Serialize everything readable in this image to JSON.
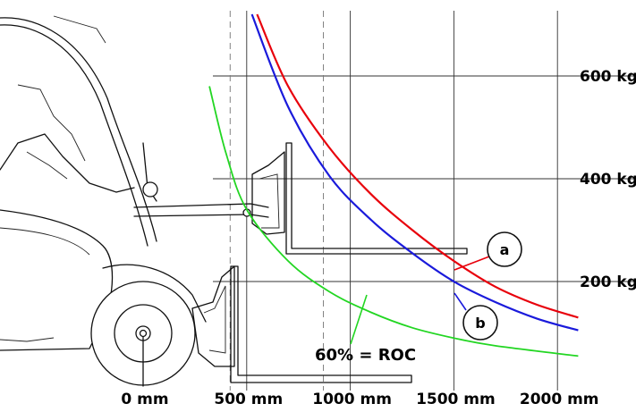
{
  "chart_data": {
    "type": "line",
    "title": "",
    "xlabel": "",
    "ylabel": "",
    "x_ticks": [
      {
        "value": 0,
        "label": "0 mm"
      },
      {
        "value": 500,
        "label": "500 mm"
      },
      {
        "value": 1000,
        "label": "1000 mm"
      },
      {
        "value": 1500,
        "label": "1500 mm"
      },
      {
        "value": 2000,
        "label": "2000 mm"
      }
    ],
    "y_ticks": [
      {
        "value": 200,
        "label": "200 kg"
      },
      {
        "value": 400,
        "label": "400 kg"
      },
      {
        "value": 600,
        "label": "600 kg"
      }
    ],
    "xlim": [
      -40,
      2150
    ],
    "ylim": [
      0,
      720
    ],
    "grid": true,
    "series": [
      {
        "key": "a",
        "color": "#e8000b",
        "points": [
          [
            550,
            720
          ],
          [
            700,
            580
          ],
          [
            900,
            460
          ],
          [
            1100,
            370
          ],
          [
            1300,
            300
          ],
          [
            1500,
            240
          ],
          [
            1700,
            190
          ],
          [
            1900,
            155
          ],
          [
            2100,
            130
          ]
        ]
      },
      {
        "key": "b",
        "color": "#1a1adb",
        "points": [
          [
            525,
            720
          ],
          [
            700,
            540
          ],
          [
            900,
            405
          ],
          [
            1100,
            320
          ],
          [
            1300,
            255
          ],
          [
            1500,
            200
          ],
          [
            1700,
            160
          ],
          [
            1900,
            128
          ],
          [
            2100,
            105
          ]
        ]
      },
      {
        "key": "roc",
        "color": "#22d622",
        "points": [
          [
            320,
            580
          ],
          [
            400,
            450
          ],
          [
            500,
            340
          ],
          [
            700,
            240
          ],
          [
            900,
            180
          ],
          [
            1100,
            140
          ],
          [
            1300,
            110
          ],
          [
            1500,
            90
          ],
          [
            1700,
            75
          ],
          [
            2100,
            55
          ]
        ]
      }
    ],
    "annotations": {
      "roc_label": "60% = ROC",
      "callout_a": "a",
      "callout_b": "b"
    }
  }
}
